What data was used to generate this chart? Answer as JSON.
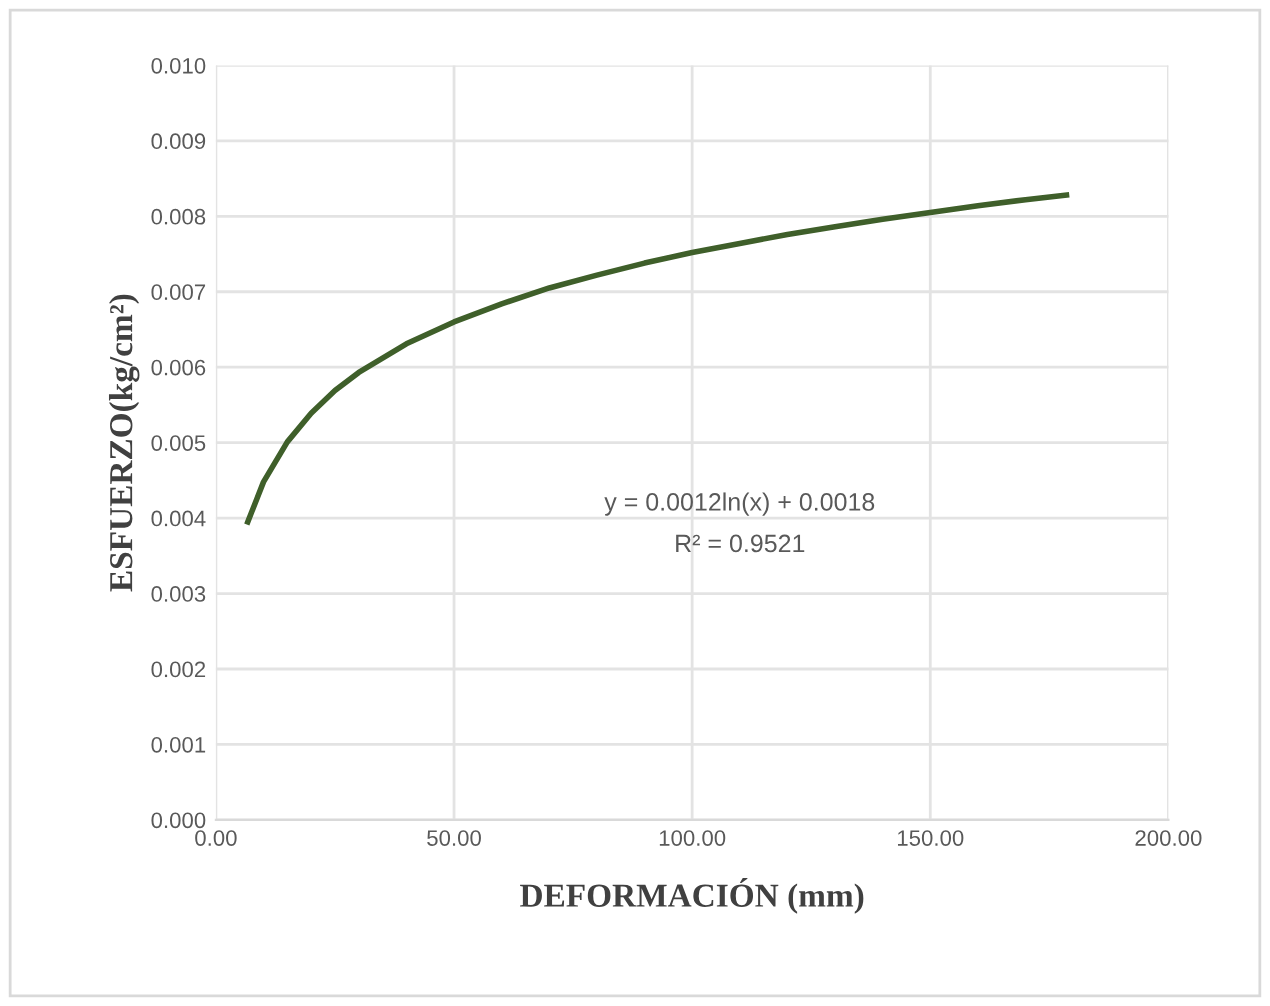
{
  "chart_data": {
    "type": "line",
    "xlabel": "DEFORMACIÓN (mm)",
    "ylabel": "ESFUERZO(kg/cm²)",
    "x": [
      6.7,
      10,
      15,
      20,
      25,
      30,
      40,
      50,
      60,
      70,
      80,
      90,
      100,
      110,
      120,
      130,
      140,
      150,
      160,
      170,
      178.6
    ],
    "series": [
      {
        "color": "#3f5f2a",
        "values": [
          0.00395,
          0.00448,
          0.00501,
          0.00539,
          0.00569,
          0.00593,
          0.00631,
          0.0066,
          0.00684,
          0.00705,
          0.00722,
          0.00738,
          0.00752,
          0.00764,
          0.00776,
          0.00786,
          0.00796,
          0.00805,
          0.00814,
          0.00822,
          0.00828
        ]
      }
    ],
    "annotations": [
      "y = 0.0012ln(x) + 0.0018",
      "R² = 0.9521"
    ],
    "xlim": [
      0,
      200
    ],
    "xticks": [
      {
        "value": 0,
        "label": "0.00"
      },
      {
        "value": 50,
        "label": "50.00"
      },
      {
        "value": 100,
        "label": "100.00"
      },
      {
        "value": 150,
        "label": "150.00"
      },
      {
        "value": 200,
        "label": "200.00"
      }
    ],
    "ylim": [
      0,
      0.01
    ],
    "yticks": [
      {
        "value": 0,
        "label": "0.000"
      },
      {
        "value": 0.001,
        "label": "0.001"
      },
      {
        "value": 0.002,
        "label": "0.002"
      },
      {
        "value": 0.003,
        "label": "0.003"
      },
      {
        "value": 0.004,
        "label": "0.004"
      },
      {
        "value": 0.005,
        "label": "0.005"
      },
      {
        "value": 0.006,
        "label": "0.006"
      },
      {
        "value": 0.007,
        "label": "0.007"
      },
      {
        "value": 0.008,
        "label": "0.008"
      },
      {
        "value": 0.009,
        "label": "0.009"
      },
      {
        "value": 0.01,
        "label": "0.010"
      }
    ],
    "grid": true,
    "marker": "none",
    "line_style": "solid"
  }
}
